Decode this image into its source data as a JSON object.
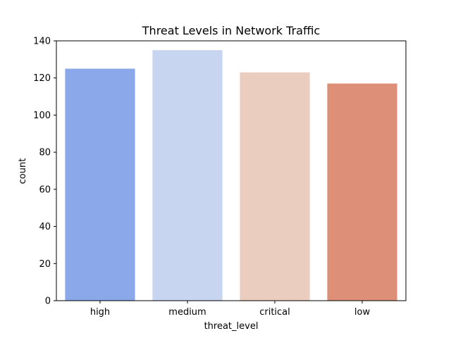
{
  "chart_data": {
    "type": "bar",
    "title": "Threat Levels in Network Traffic",
    "xlabel": "threat_level",
    "ylabel": "count",
    "categories": [
      "high",
      "medium",
      "critical",
      "low"
    ],
    "values": [
      125,
      135,
      123,
      117
    ],
    "colors": [
      "#8aa8ea",
      "#c7d5f0",
      "#eacdbf",
      "#de8f77"
    ],
    "ylim": [
      0,
      140
    ],
    "yticks": [
      "0",
      "20",
      "40",
      "60",
      "80",
      "100",
      "120",
      "140"
    ],
    "grid": false,
    "legend": "none"
  }
}
